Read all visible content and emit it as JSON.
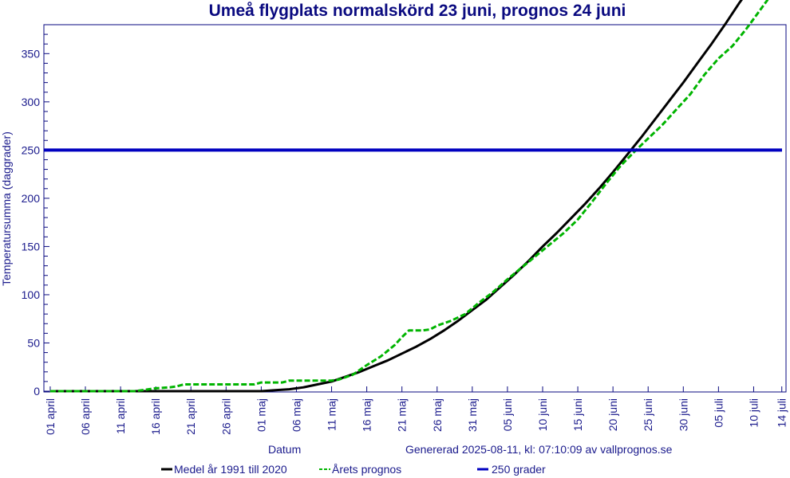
{
  "chart_data": {
    "type": "line",
    "title": "Umeå flygplats normalskörd 23 juni, prognos 24 juni",
    "xlabel": "Datum",
    "ylabel": "Temperatursumma (daggrader)",
    "generated": "Genererad 2025-08-11, kl: 07:10:09 av vallprognos.se",
    "ylim": [
      0,
      380
    ],
    "y_ticks": [
      0,
      50,
      100,
      150,
      200,
      250,
      300,
      350
    ],
    "x_range_dates": [
      "31 mars",
      "14 juli"
    ],
    "x_ticks": [
      {
        "day": 0,
        "label": "01 april"
      },
      {
        "day": 5,
        "label": "06 april"
      },
      {
        "day": 10,
        "label": "11 april"
      },
      {
        "day": 15,
        "label": "16 april"
      },
      {
        "day": 20,
        "label": "21 april"
      },
      {
        "day": 25,
        "label": "26 april"
      },
      {
        "day": 30,
        "label": "01 maj"
      },
      {
        "day": 35,
        "label": "06 maj"
      },
      {
        "day": 40,
        "label": "11 maj"
      },
      {
        "day": 45,
        "label": "16 maj"
      },
      {
        "day": 50,
        "label": "21 maj"
      },
      {
        "day": 55,
        "label": "26 maj"
      },
      {
        "day": 60,
        "label": "31 maj"
      },
      {
        "day": 65,
        "label": "05 juni"
      },
      {
        "day": 70,
        "label": "10 juni"
      },
      {
        "day": 75,
        "label": "15 juni"
      },
      {
        "day": 80,
        "label": "20 juni"
      },
      {
        "day": 85,
        "label": "25 juni"
      },
      {
        "day": 90,
        "label": "30 juni"
      },
      {
        "day": 95,
        "label": "05 juli"
      },
      {
        "day": 100,
        "label": "10 juli"
      },
      {
        "day": 104,
        "label": "14 juli"
      }
    ],
    "grid": false,
    "legend_position": "bottom",
    "series": [
      {
        "name": "Medel år 1991 till 2020",
        "color": "#000000",
        "style": "solid",
        "points": [
          [
            0,
            0
          ],
          [
            30,
            0
          ],
          [
            32,
            1
          ],
          [
            34,
            2
          ],
          [
            36,
            4
          ],
          [
            38,
            7
          ],
          [
            40,
            10
          ],
          [
            42,
            15
          ],
          [
            44,
            20
          ],
          [
            46,
            26
          ],
          [
            48,
            32
          ],
          [
            50,
            39
          ],
          [
            52,
            46
          ],
          [
            54,
            54
          ],
          [
            56,
            63
          ],
          [
            58,
            73
          ],
          [
            60,
            84
          ],
          [
            62,
            95
          ],
          [
            64,
            108
          ],
          [
            66,
            121
          ],
          [
            68,
            135
          ],
          [
            70,
            150
          ],
          [
            72,
            164
          ],
          [
            74,
            179
          ],
          [
            76,
            194
          ],
          [
            78,
            210
          ],
          [
            80,
            227
          ],
          [
            82,
            245
          ],
          [
            84,
            263
          ],
          [
            86,
            282
          ],
          [
            88,
            301
          ],
          [
            90,
            320
          ],
          [
            92,
            340
          ],
          [
            94,
            360
          ],
          [
            96,
            381
          ],
          [
            98,
            403
          ],
          [
            99,
            413
          ]
        ]
      },
      {
        "name": "Årets prognos",
        "color": "#00b400",
        "style": "dashed",
        "points": [
          [
            0,
            0
          ],
          [
            12,
            0
          ],
          [
            13,
            1
          ],
          [
            14,
            2
          ],
          [
            15,
            3
          ],
          [
            17,
            4
          ],
          [
            18,
            5
          ],
          [
            19,
            7
          ],
          [
            20,
            7
          ],
          [
            29,
            7
          ],
          [
            30,
            9
          ],
          [
            33,
            9
          ],
          [
            34,
            11
          ],
          [
            40,
            11
          ],
          [
            41,
            12
          ],
          [
            43,
            17
          ],
          [
            45,
            27
          ],
          [
            47,
            36
          ],
          [
            49,
            48
          ],
          [
            50,
            56
          ],
          [
            51,
            63
          ],
          [
            53,
            63
          ],
          [
            54,
            64
          ],
          [
            55,
            68
          ],
          [
            57,
            73
          ],
          [
            59,
            80
          ],
          [
            61,
            92
          ],
          [
            63,
            103
          ],
          [
            65,
            116
          ],
          [
            67,
            128
          ],
          [
            69,
            140
          ],
          [
            71,
            152
          ],
          [
            73,
            164
          ],
          [
            75,
            178
          ],
          [
            77,
            196
          ],
          [
            79,
            215
          ],
          [
            81,
            233
          ],
          [
            83,
            248
          ],
          [
            85,
            262
          ],
          [
            87,
            276
          ],
          [
            89,
            292
          ],
          [
            91,
            308
          ],
          [
            93,
            328
          ],
          [
            95,
            345
          ],
          [
            97,
            358
          ],
          [
            99,
            376
          ],
          [
            101,
            396
          ],
          [
            102,
            406
          ]
        ]
      },
      {
        "name": "250 grader",
        "color": "#0000c0",
        "style": "solid",
        "constant": 250
      }
    ]
  }
}
